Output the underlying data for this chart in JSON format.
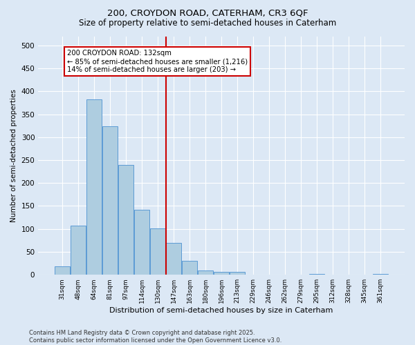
{
  "title1": "200, CROYDON ROAD, CATERHAM, CR3 6QF",
  "title2": "Size of property relative to semi-detached houses in Caterham",
  "xlabel": "Distribution of semi-detached houses by size in Caterham",
  "ylabel": "Number of semi-detached properties",
  "categories": [
    "31sqm",
    "48sqm",
    "64sqm",
    "81sqm",
    "97sqm",
    "114sqm",
    "130sqm",
    "147sqm",
    "163sqm",
    "180sqm",
    "196sqm",
    "213sqm",
    "229sqm",
    "246sqm",
    "262sqm",
    "279sqm",
    "295sqm",
    "312sqm",
    "328sqm",
    "345sqm",
    "361sqm"
  ],
  "values": [
    19,
    107,
    382,
    323,
    240,
    141,
    101,
    70,
    30,
    9,
    6,
    6,
    0,
    0,
    0,
    0,
    2,
    0,
    0,
    0,
    2
  ],
  "bar_color": "#aecde0",
  "bar_edge_color": "#5b9bd5",
  "vline_color": "#cc0000",
  "annotation_text": "200 CROYDON ROAD: 132sqm\n← 85% of semi-detached houses are smaller (1,216)\n14% of semi-detached houses are larger (203) →",
  "annotation_box_color": "#cc0000",
  "background_color": "#dce8f5",
  "grid_color": "#ffffff",
  "footer": "Contains HM Land Registry data © Crown copyright and database right 2025.\nContains public sector information licensed under the Open Government Licence v3.0.",
  "ylim": [
    0,
    520
  ],
  "yticks": [
    0,
    50,
    100,
    150,
    200,
    250,
    300,
    350,
    400,
    450,
    500
  ]
}
